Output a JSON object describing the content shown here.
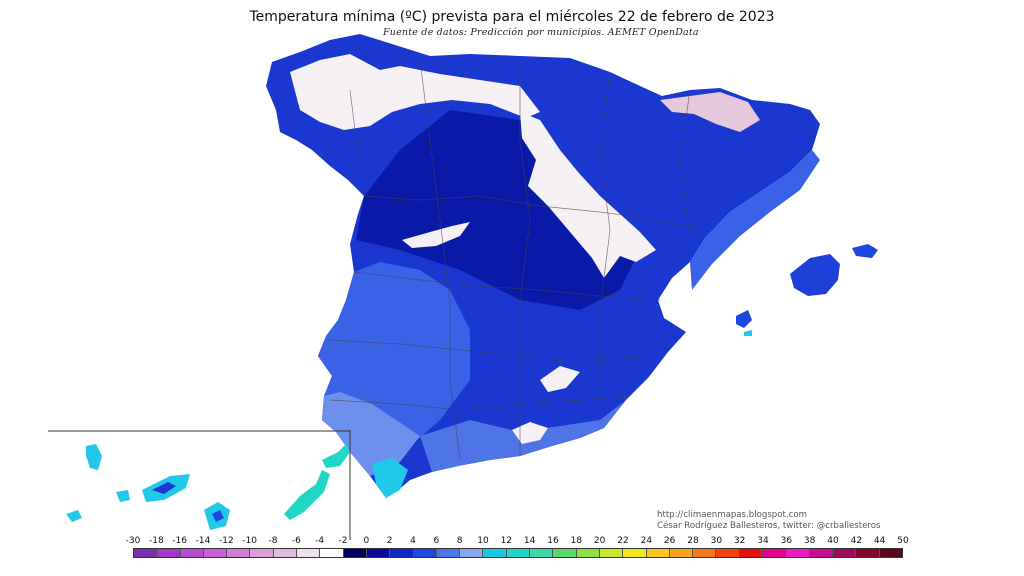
{
  "title": "Temperatura mínima (ºC) prevista para el miércoles 22 de febrero de 2023",
  "subtitle": "Fuente de datos: Predicción por municipios. AEMET OpenData",
  "credits": {
    "line1": "http://climaenmapas.blogspot.com",
    "line2": "César Rodríguez Ballesteros, twitter: @crballesteros"
  },
  "legend": {
    "ticks": [
      "-30",
      "-18",
      "-16",
      "-14",
      "-12",
      "-10",
      "-8",
      "-6",
      "-4",
      "-2",
      "0",
      "2",
      "4",
      "6",
      "8",
      "10",
      "12",
      "14",
      "16",
      "18",
      "20",
      "22",
      "24",
      "26",
      "28",
      "30",
      "32",
      "34",
      "36",
      "38",
      "40",
      "42",
      "44",
      "50"
    ],
    "colors": [
      "#7a2fb0",
      "#a238c8",
      "#b84ad6",
      "#c762dc",
      "#d27fd8",
      "#d9a0d6",
      "#e0bcdc",
      "#ece0ea",
      "#ffffff",
      "#000060",
      "#0a0a9a",
      "#1028c8",
      "#1e46e0",
      "#4d78e8",
      "#88a8ee",
      "#14c8e6",
      "#22d6c6",
      "#3cd8a8",
      "#5cd870",
      "#90e040",
      "#c8e828",
      "#f0e81c",
      "#f8c81c",
      "#f8a418",
      "#f47818",
      "#f04410",
      "#e81010",
      "#e8008c",
      "#e81cc0",
      "#c8108c",
      "#a00c5c",
      "#80082a",
      "#60041a"
    ],
    "dot_marker_value": "14"
  },
  "map": {
    "colors": {
      "deep": "#0a1aa8",
      "mid": "#1e3fd8",
      "light": "#3a62e6",
      "pale": "#6d90ee",
      "cyan": "#22c8e8",
      "snow": "#f4f0f4",
      "pink": "#e6c8dc",
      "border": "#444444"
    },
    "regions": [
      "peninsula",
      "mallorca",
      "menorca",
      "ibiza",
      "formentera",
      "canarias-inset"
    ]
  }
}
